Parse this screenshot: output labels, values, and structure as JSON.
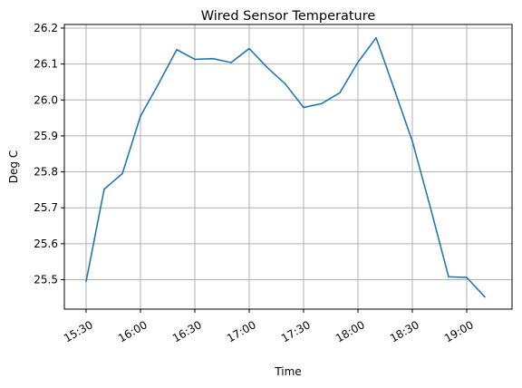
{
  "chart_data": {
    "type": "line",
    "title": "Wired Sensor Temperature",
    "xlabel": "Time",
    "ylabel": "Deg C",
    "grid": true,
    "line_color": "#1f77b4",
    "x_tick_labels": [
      "15:30",
      "16:00",
      "16:30",
      "17:00",
      "17:30",
      "18:00",
      "18:30",
      "19:00"
    ],
    "y_tick_labels": [
      "25.5",
      "25.6",
      "25.7",
      "25.8",
      "25.9",
      "26.0",
      "26.1",
      "26.2"
    ],
    "xlim": [
      "15:18",
      "19:25"
    ],
    "ylim": [
      25.418,
      26.21
    ],
    "series": [
      {
        "x": [
          "15:30",
          "15:40",
          "15:50",
          "16:00",
          "16:10",
          "16:20",
          "16:30",
          "16:40",
          "16:50",
          "17:00",
          "17:10",
          "17:20",
          "17:30",
          "17:40",
          "17:50",
          "18:00",
          "18:10",
          "18:20",
          "18:30",
          "18:40",
          "18:50",
          "19:00",
          "19:10"
        ],
        "y": [
          25.495,
          25.752,
          25.795,
          25.955,
          26.045,
          26.14,
          26.113,
          26.115,
          26.104,
          26.143,
          26.09,
          26.044,
          25.979,
          25.99,
          26.02,
          26.105,
          26.173,
          26.03,
          25.885,
          25.7,
          25.508,
          25.506,
          25.452
        ]
      }
    ]
  }
}
